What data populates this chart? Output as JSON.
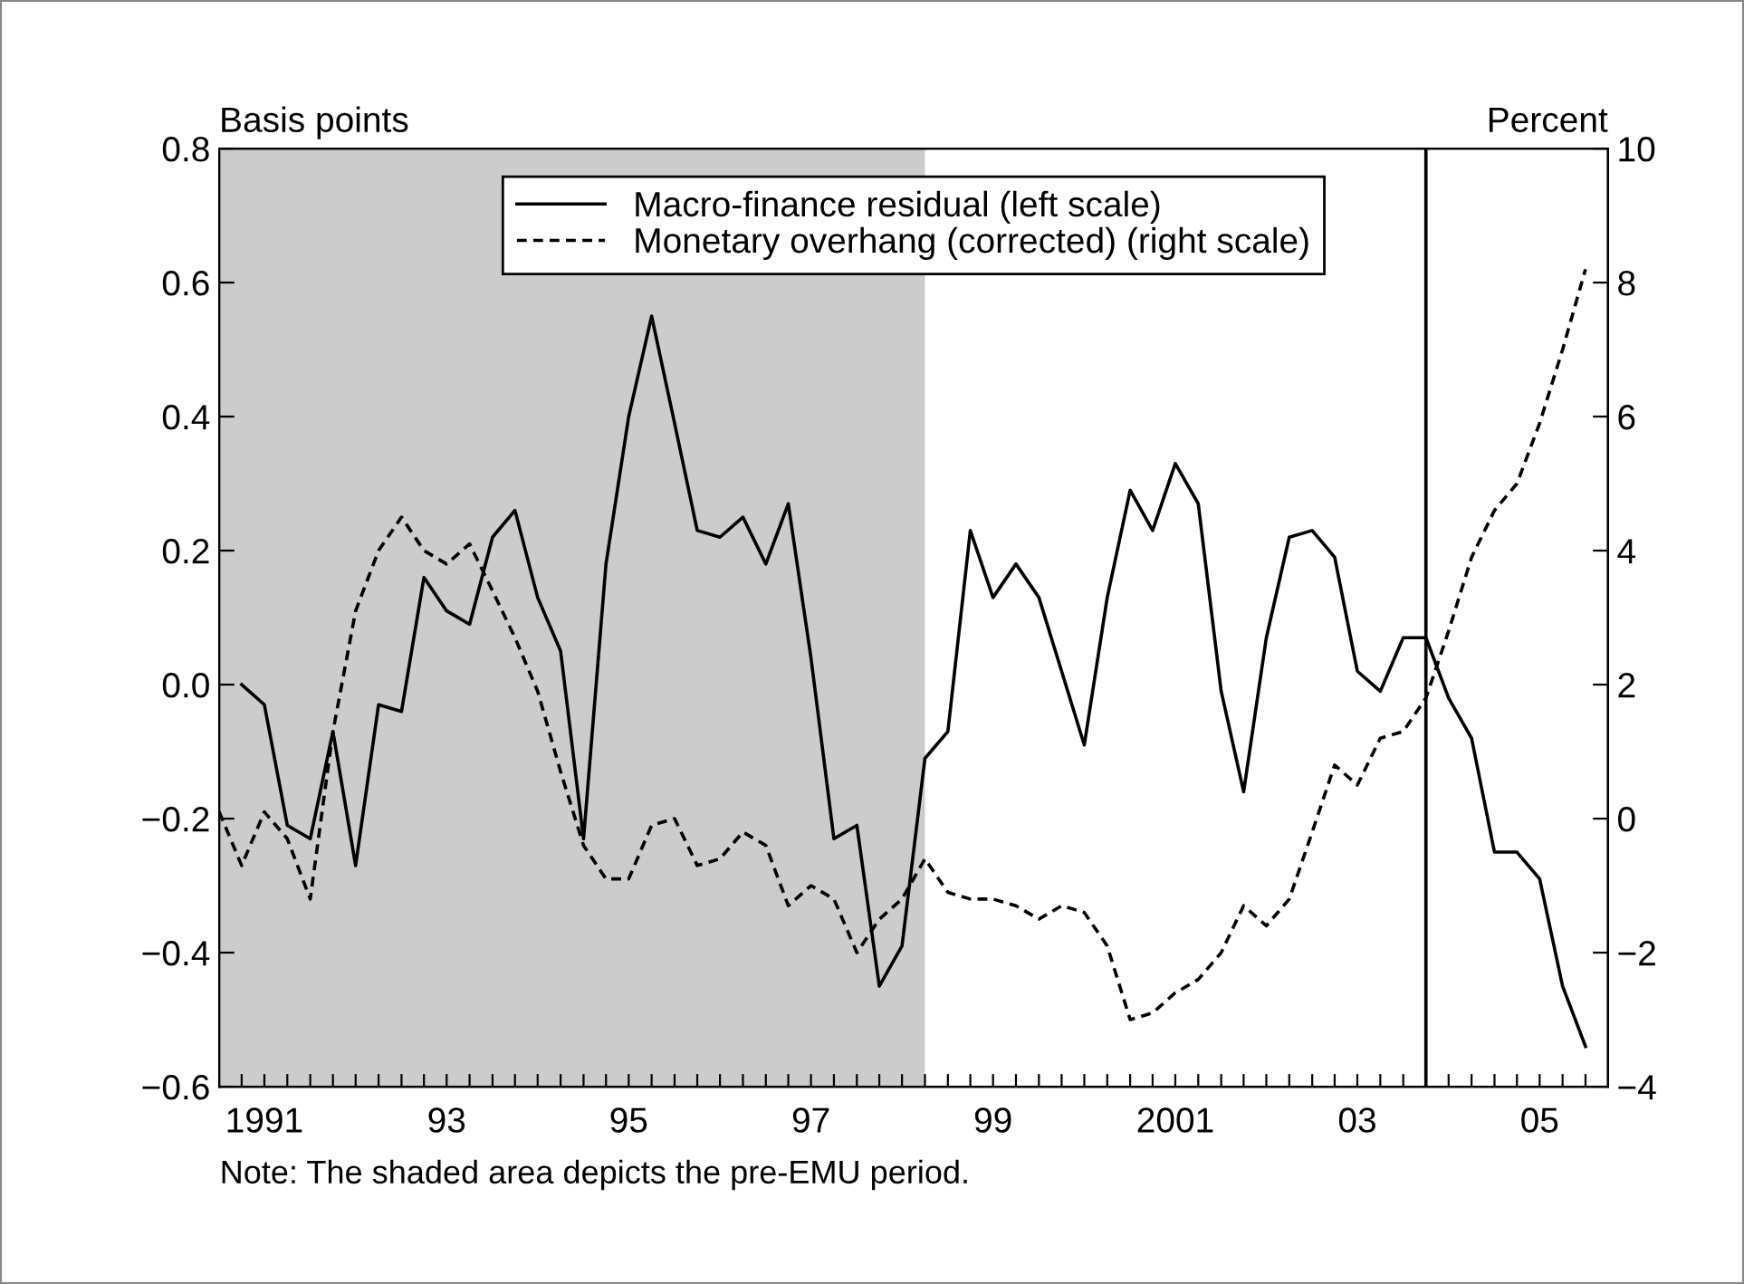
{
  "chart_data": {
    "type": "line",
    "ylabel": "Basis points",
    "y2label": "Percent",
    "annotations": [
      "Note: The shaded area depicts the pre-EMU period."
    ],
    "series": [
      {
        "name": "Macro-finance residual (left scale)",
        "color": "#000000",
        "line_style": "solid",
        "x": [
          "1991-04-01",
          "1991-07-01",
          "1991-10-01",
          "1992-01-01",
          "1992-04-01",
          "1992-07-01",
          "1992-10-01",
          "1993-01-01",
          "1993-04-01",
          "1993-07-01",
          "1993-10-01",
          "1994-01-01",
          "1994-04-01",
          "1994-07-01",
          "1994-10-01",
          "1995-01-01",
          "1995-04-01",
          "1995-07-01",
          "1995-10-01",
          "1996-01-01",
          "1996-04-01",
          "1996-07-01",
          "1996-10-01",
          "1997-01-01",
          "1997-04-01",
          "1997-07-01",
          "1997-10-01",
          "1998-01-01",
          "1998-04-01",
          "1998-07-01",
          "1998-10-01",
          "1999-01-01",
          "1999-04-01",
          "1999-07-01",
          "1999-10-01",
          "2000-01-01",
          "2000-04-01",
          "2000-07-01",
          "2000-10-01",
          "2001-01-01",
          "2001-04-01",
          "2001-07-01",
          "2001-10-01",
          "2002-01-01",
          "2002-04-01",
          "2002-07-01",
          "2002-10-01",
          "2003-01-01",
          "2003-04-01",
          "2003-07-01",
          "2003-10-01",
          "2004-01-01",
          "2004-04-01",
          "2004-07-01",
          "2004-10-01",
          "2005-01-01",
          "2005-04-01",
          "2005-07-01",
          "2005-10-01",
          "2006-01-01"
        ],
        "values": [
          0.0,
          -0.03,
          -0.21,
          -0.23,
          -0.07,
          -0.27,
          -0.03,
          -0.04,
          0.16,
          0.11,
          0.09,
          0.22,
          0.26,
          0.13,
          0.05,
          -0.23,
          0.18,
          0.4,
          0.55,
          0.39,
          0.23,
          0.22,
          0.25,
          0.18,
          0.27,
          0.04,
          -0.23,
          -0.21,
          -0.45,
          -0.39,
          -0.11,
          -0.07,
          0.23,
          0.13,
          0.18,
          0.13,
          0.02,
          -0.09,
          0.13,
          0.29,
          0.23,
          0.33,
          0.27,
          -0.01,
          -0.16,
          0.07,
          0.22,
          0.23,
          0.19,
          0.02,
          -0.01,
          0.07,
          0.07,
          -0.02,
          -0.08,
          -0.25,
          -0.25,
          -0.29,
          -0.45,
          -0.54
        ]
      },
      {
        "name": "Monetary overhang (corrected) (right scale)",
        "color": "#000000",
        "line_style": "dashed",
        "axis": "y2",
        "x": [
          "1991-01-01",
          "1991-04-01",
          "1991-07-01",
          "1991-10-01",
          "1992-01-01",
          "1992-04-01",
          "1992-07-01",
          "1992-10-01",
          "1993-01-01",
          "1993-04-01",
          "1993-07-01",
          "1993-10-01",
          "1994-01-01",
          "1994-04-01",
          "1994-07-01",
          "1994-10-01",
          "1995-01-01",
          "1995-04-01",
          "1995-07-01",
          "1995-10-01",
          "1996-01-01",
          "1996-04-01",
          "1996-07-01",
          "1996-10-01",
          "1997-01-01",
          "1997-04-01",
          "1997-07-01",
          "1997-10-01",
          "1998-01-01",
          "1998-04-01",
          "1998-07-01",
          "1998-10-01",
          "1999-01-01",
          "1999-04-01",
          "1999-07-01",
          "1999-10-01",
          "2000-01-01",
          "2000-04-01",
          "2000-07-01",
          "2000-10-01",
          "2001-01-01",
          "2001-04-01",
          "2001-07-01",
          "2001-10-01",
          "2002-01-01",
          "2002-04-01",
          "2002-07-01",
          "2002-10-01",
          "2003-01-01",
          "2003-04-01",
          "2003-07-01",
          "2003-10-01",
          "2004-01-01",
          "2004-04-01",
          "2004-07-01",
          "2004-10-01",
          "2005-01-01",
          "2005-04-01",
          "2005-07-01",
          "2005-10-01",
          "2006-01-01"
        ],
        "values": [
          0.1,
          -0.7,
          0.1,
          -0.3,
          -1.2,
          1.3,
          3.1,
          4.0,
          4.5,
          4.0,
          3.8,
          4.1,
          3.4,
          2.7,
          1.9,
          0.7,
          -0.4,
          -0.9,
          -0.9,
          -0.1,
          0.0,
          -0.7,
          -0.6,
          -0.2,
          -0.4,
          -1.3,
          -1.0,
          -1.2,
          -2.0,
          -1.5,
          -1.2,
          -0.6,
          -1.1,
          -1.2,
          -1.2,
          -1.3,
          -1.5,
          -1.3,
          -1.4,
          -1.9,
          -3.0,
          -2.9,
          -2.6,
          -2.4,
          -2.0,
          -1.3,
          -1.6,
          -1.2,
          -0.2,
          0.8,
          0.5,
          1.2,
          1.3,
          1.8,
          2.8,
          3.9,
          4.6,
          5.0,
          5.9,
          7.0,
          8.2
        ]
      }
    ],
    "xlim": [
      "1991-01-01",
      "2006-04-01"
    ],
    "xticks": [
      {
        "value": "1991-04-01",
        "label": null
      },
      {
        "value": "1991-07-01",
        "label": "1991"
      },
      {
        "value": "1991-10-01",
        "label": null
      },
      {
        "value": "1992-01-01",
        "label": null
      },
      {
        "value": "1992-04-01",
        "label": null
      },
      {
        "value": "1992-07-01",
        "label": null
      },
      {
        "value": "1992-10-01",
        "label": null
      },
      {
        "value": "1993-01-01",
        "label": null
      },
      {
        "value": "1993-04-01",
        "label": null
      },
      {
        "value": "1993-07-01",
        "label": "93"
      },
      {
        "value": "1993-10-01",
        "label": null
      },
      {
        "value": "1994-01-01",
        "label": null
      },
      {
        "value": "1994-04-01",
        "label": null
      },
      {
        "value": "1994-07-01",
        "label": null
      },
      {
        "value": "1994-10-01",
        "label": null
      },
      {
        "value": "1995-01-01",
        "label": null
      },
      {
        "value": "1995-04-01",
        "label": null
      },
      {
        "value": "1995-07-01",
        "label": "95"
      },
      {
        "value": "1995-10-01",
        "label": null
      },
      {
        "value": "1996-01-01",
        "label": null
      },
      {
        "value": "1996-04-01",
        "label": null
      },
      {
        "value": "1996-07-01",
        "label": null
      },
      {
        "value": "1996-10-01",
        "label": null
      },
      {
        "value": "1997-01-01",
        "label": null
      },
      {
        "value": "1997-04-01",
        "label": null
      },
      {
        "value": "1997-07-01",
        "label": "97"
      },
      {
        "value": "1997-10-01",
        "label": null
      },
      {
        "value": "1998-01-01",
        "label": null
      },
      {
        "value": "1998-04-01",
        "label": null
      },
      {
        "value": "1998-07-01",
        "label": null
      },
      {
        "value": "1998-10-01",
        "label": null
      },
      {
        "value": "1999-01-01",
        "label": null
      },
      {
        "value": "1999-04-01",
        "label": null
      },
      {
        "value": "1999-07-01",
        "label": "99"
      },
      {
        "value": "1999-10-01",
        "label": null
      },
      {
        "value": "2000-01-01",
        "label": null
      },
      {
        "value": "2000-04-01",
        "label": null
      },
      {
        "value": "2000-07-01",
        "label": null
      },
      {
        "value": "2000-10-01",
        "label": null
      },
      {
        "value": "2001-01-01",
        "label": null
      },
      {
        "value": "2001-04-01",
        "label": null
      },
      {
        "value": "2001-07-01",
        "label": "2001"
      },
      {
        "value": "2001-10-01",
        "label": null
      },
      {
        "value": "2002-01-01",
        "label": null
      },
      {
        "value": "2002-04-01",
        "label": null
      },
      {
        "value": "2002-07-01",
        "label": null
      },
      {
        "value": "2002-10-01",
        "label": null
      },
      {
        "value": "2003-01-01",
        "label": null
      },
      {
        "value": "2003-04-01",
        "label": null
      },
      {
        "value": "2003-07-01",
        "label": "03"
      },
      {
        "value": "2003-10-01",
        "label": null
      },
      {
        "value": "2004-01-01",
        "label": null
      },
      {
        "value": "2004-04-01",
        "label": null
      },
      {
        "value": "2004-07-01",
        "label": null
      },
      {
        "value": "2004-10-01",
        "label": null
      },
      {
        "value": "2005-01-01",
        "label": null
      },
      {
        "value": "2005-04-01",
        "label": null
      },
      {
        "value": "2005-07-01",
        "label": "05"
      },
      {
        "value": "2005-10-01",
        "label": null
      },
      {
        "value": "2006-01-01",
        "label": null
      }
    ],
    "ylim": [
      -0.6,
      0.8
    ],
    "yticks": [
      {
        "value": -0.6,
        "label": "−0.6"
      },
      {
        "value": -0.4,
        "label": "−0.4"
      },
      {
        "value": -0.2,
        "label": "−0.2"
      },
      {
        "value": 0.0,
        "label": "0.0"
      },
      {
        "value": 0.2,
        "label": "0.2"
      },
      {
        "value": 0.4,
        "label": "0.4"
      },
      {
        "value": 0.6,
        "label": "0.6"
      },
      {
        "value": 0.8,
        "label": "0.8"
      }
    ],
    "y2lim": [
      -4,
      10
    ],
    "y2ticks": [
      {
        "value": -4,
        "label": "−4"
      },
      {
        "value": -2,
        "label": "−2"
      },
      0,
      2,
      4,
      6,
      8,
      10
    ],
    "bands": [
      {
        "axis": "x",
        "from": "1991-01-01",
        "to": "1998-10-01",
        "color": "#cccccc"
      }
    ],
    "ref_lines": [
      {
        "axis": "x",
        "value": "2004-04-01",
        "color": "#000000",
        "line_style": "solid"
      }
    ],
    "legend": "top",
    "grid": false,
    "marker": "none"
  }
}
